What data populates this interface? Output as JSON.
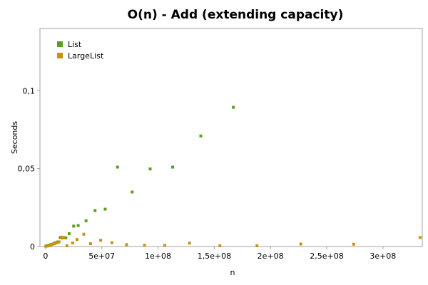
{
  "chart_data": {
    "type": "scatter",
    "title": "O(n) - Add (extending capacity)",
    "xlabel": "n",
    "ylabel": "Seconds",
    "xlim": [
      -5000000,
      335000000
    ],
    "ylim": [
      0,
      0.14
    ],
    "x_ticks": [
      {
        "value": 0,
        "label": "0"
      },
      {
        "value": 50000000,
        "label": "5e+07"
      },
      {
        "value": 100000000,
        "label": "1e+08"
      },
      {
        "value": 150000000,
        "label": "1,5e+08"
      },
      {
        "value": 200000000,
        "label": "2e+08"
      },
      {
        "value": 250000000,
        "label": "2,5e+08"
      },
      {
        "value": 300000000,
        "label": "3e+08"
      }
    ],
    "y_ticks": [
      {
        "value": 0,
        "label": "0"
      },
      {
        "value": 0.05,
        "label": "0,05"
      },
      {
        "value": 0.1,
        "label": "0,1"
      }
    ],
    "grid": false,
    "legend_position": "top-left",
    "series": [
      {
        "name": "List",
        "color": "#5a9e1e",
        "points": [
          [
            300000,
            0.0002
          ],
          [
            1000000,
            0.0004
          ],
          [
            2000000,
            0.0006
          ],
          [
            3000000,
            0.0008
          ],
          [
            4500000,
            0.0012
          ],
          [
            6000000,
            0.0015
          ],
          [
            7500000,
            0.002
          ],
          [
            9000000,
            0.0025
          ],
          [
            11000000,
            0.003
          ],
          [
            13000000,
            0.0058
          ],
          [
            15000000,
            0.0055
          ],
          [
            18000000,
            0.0056
          ],
          [
            21000000,
            0.0083
          ],
          [
            25000000,
            0.0131
          ],
          [
            29000000,
            0.0135
          ],
          [
            36000000,
            0.0165
          ],
          [
            44000000,
            0.0231
          ],
          [
            53000000,
            0.024
          ],
          [
            64000000,
            0.051
          ],
          [
            77000000,
            0.035
          ],
          [
            93000000,
            0.0498
          ],
          [
            113000000,
            0.051
          ],
          [
            138000000,
            0.071
          ],
          [
            167000000,
            0.0894
          ]
        ]
      },
      {
        "name": "LargeList",
        "color": "#c8920f",
        "points": [
          [
            300000,
            0.0002
          ],
          [
            1500000,
            0.0004
          ],
          [
            3000000,
            0.0006
          ],
          [
            4500000,
            0.0009
          ],
          [
            6000000,
            0.0014
          ],
          [
            7500000,
            0.0018
          ],
          [
            9000000,
            0.0022
          ],
          [
            11000000,
            0.0026
          ],
          [
            12000000,
            0.003
          ],
          [
            14000000,
            0.006
          ],
          [
            16000000,
            0.0058
          ],
          [
            19000000,
            0.0005
          ],
          [
            24000000,
            0.0023
          ],
          [
            28000000,
            0.0045
          ],
          [
            34000000,
            0.0079
          ],
          [
            40000000,
            0.0018
          ],
          [
            49000000,
            0.004
          ],
          [
            59000000,
            0.0025
          ],
          [
            72000000,
            0.0012
          ],
          [
            88000000,
            0.0008
          ],
          [
            106000000,
            0.0007
          ],
          [
            128000000,
            0.0022
          ],
          [
            155000000,
            0.0005
          ],
          [
            188000000,
            0.0005
          ],
          [
            227000000,
            0.0016
          ],
          [
            274000000,
            0.0015
          ],
          [
            333000000,
            0.0058
          ]
        ]
      }
    ]
  }
}
